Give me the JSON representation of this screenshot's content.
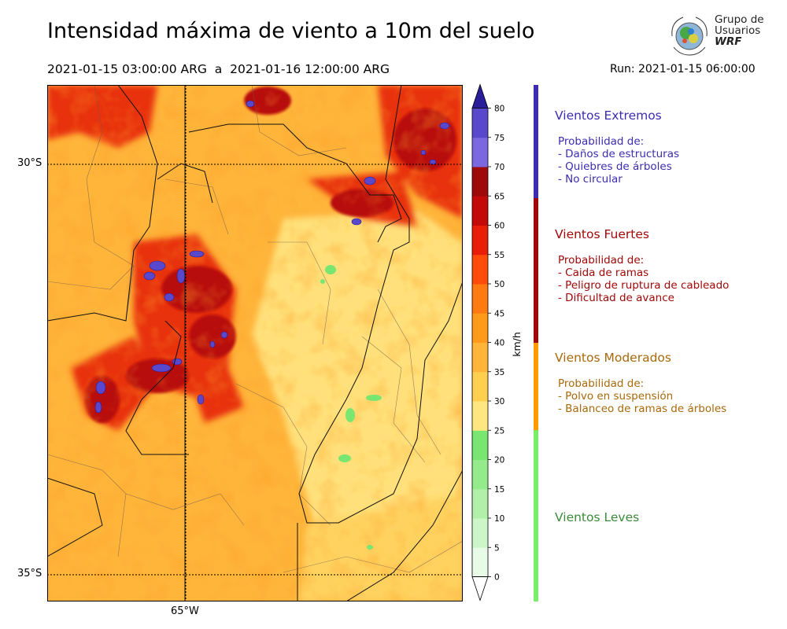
{
  "title": "Intensidad máxima de viento a 10m del suelo",
  "period": "2021-01-15 03:00:00 ARG  a  2021-01-16 12:00:00 ARG",
  "run": "Run: 2021-01-15 06:00:00",
  "logo": {
    "line1": "Grupo de",
    "line2": "Usuarios",
    "line3": "WRF"
  },
  "axes": {
    "lat_top": "30°S",
    "lat_bottom": "35°S",
    "lon": "65°W"
  },
  "colorbar": {
    "unit": "km/h",
    "ticks": [
      "0",
      "5",
      "10",
      "15",
      "20",
      "25",
      "30",
      "35",
      "40",
      "45",
      "50",
      "55",
      "60",
      "65",
      "70",
      "75",
      "80"
    ],
    "colors": [
      "#e8fbe6",
      "#ccf6c8",
      "#b0f0a8",
      "#93eb8c",
      "#78e670",
      "#ffe680",
      "#ffcf50",
      "#ffb43a",
      "#ff9a1a",
      "#ff7a10",
      "#ff4c0a",
      "#e81e08",
      "#c40a08",
      "#9e0a0a",
      "#7b68e0",
      "#5a48cc",
      "#3d2fb0",
      "#2a1d9a"
    ]
  },
  "categories": [
    {
      "name": "Vientos Extremos",
      "color": "#3d2bb0",
      "lines": [
        "Probabilidad de:",
        "- Daños de estructuras",
        "- Quiebres de árboles",
        "- No circular"
      ]
    },
    {
      "name": "Vientos Fuertes",
      "color": "#a00808",
      "lines": [
        "Probabilidad de:",
        "- Caida de ramas",
        "- Peligro de ruptura de cableado",
        "- Dificultad de avance"
      ]
    },
    {
      "name": "Vientos Moderados",
      "color": "#a8690a",
      "lines": [
        "Probabilidad de:",
        "- Polvo en suspensión",
        "- Balanceo de ramas de árboles"
      ]
    },
    {
      "name": "Vientos Leves",
      "color": "#3a8a3a",
      "lines": []
    }
  ],
  "legend_bar_colors": [
    "#3d2bb0",
    "#a00808",
    "#ff9a00",
    "#78ee6a"
  ]
}
